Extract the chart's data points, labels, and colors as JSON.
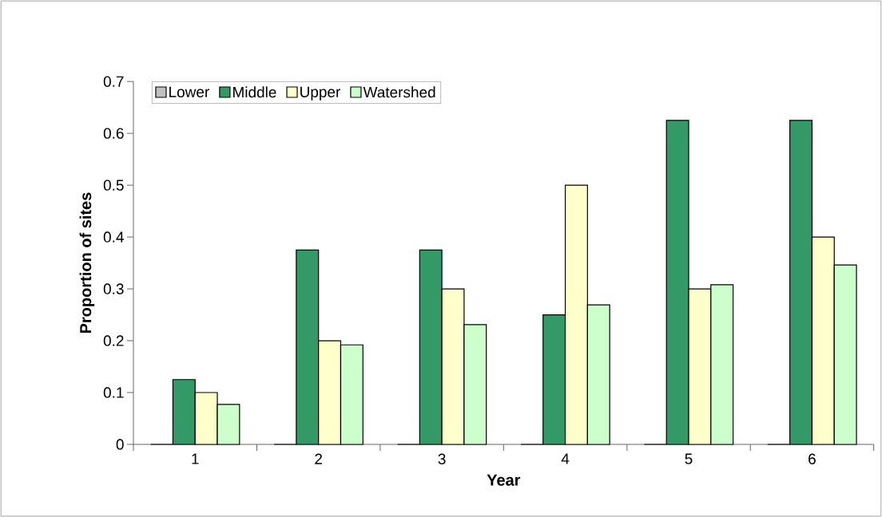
{
  "chart_data": {
    "type": "bar",
    "xlabel": "Year",
    "ylabel": "Proportion of sites",
    "categories": [
      "1",
      "2",
      "3",
      "4",
      "5",
      "6"
    ],
    "series": [
      {
        "name": "Lower",
        "color": "#c0c0c0",
        "values": [
          0,
          0,
          0,
          0,
          0,
          0
        ]
      },
      {
        "name": "Middle",
        "color": "#339966",
        "values": [
          0.125,
          0.375,
          0.375,
          0.25,
          0.625,
          0.625
        ]
      },
      {
        "name": "Upper",
        "color": "#ffffcc",
        "values": [
          0.1,
          0.2,
          0.3,
          0.5,
          0.3,
          0.4
        ]
      },
      {
        "name": "Watershed",
        "color": "#ccffcc",
        "values": [
          0.077,
          0.192,
          0.231,
          0.269,
          0.308,
          0.346
        ]
      }
    ],
    "ylim": [
      0,
      0.7
    ],
    "yticks": [
      0,
      0.1,
      0.2,
      0.3,
      0.4,
      0.5,
      0.6,
      0.7
    ],
    "legend": "top left",
    "grid": false
  }
}
